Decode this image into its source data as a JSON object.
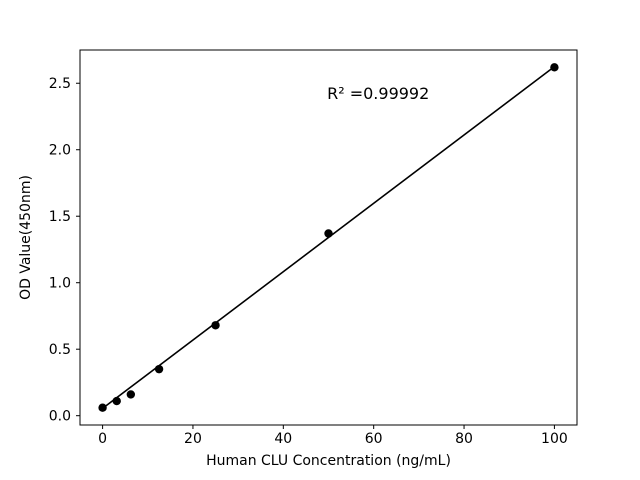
{
  "chart_data": {
    "type": "scatter",
    "title": "",
    "xlabel": "Human CLU Concentration (ng/mL)",
    "ylabel": "OD Value(450nm)",
    "x": [
      0,
      3.125,
      6.25,
      12.5,
      25,
      50,
      100
    ],
    "y": [
      0.06,
      0.11,
      0.16,
      0.35,
      0.68,
      1.37,
      2.62
    ],
    "fit_line": {
      "x": [
        0,
        100
      ],
      "y": [
        0.055,
        2.625
      ]
    },
    "annotation": {
      "text": "R² =0.99992",
      "x": 61,
      "y": 2.42
    },
    "xlim": [
      -5,
      105
    ],
    "ylim": [
      -0.07,
      2.75
    ],
    "xticks": [
      0,
      20,
      40,
      60,
      80,
      100
    ],
    "yticks": [
      0.0,
      0.5,
      1.0,
      1.5,
      2.0,
      2.5
    ],
    "grid": false,
    "legend_position": "none",
    "marker_color": "#000000",
    "line_color": "#000000",
    "frame_color": "#000000",
    "background_color": "#ffffff"
  }
}
